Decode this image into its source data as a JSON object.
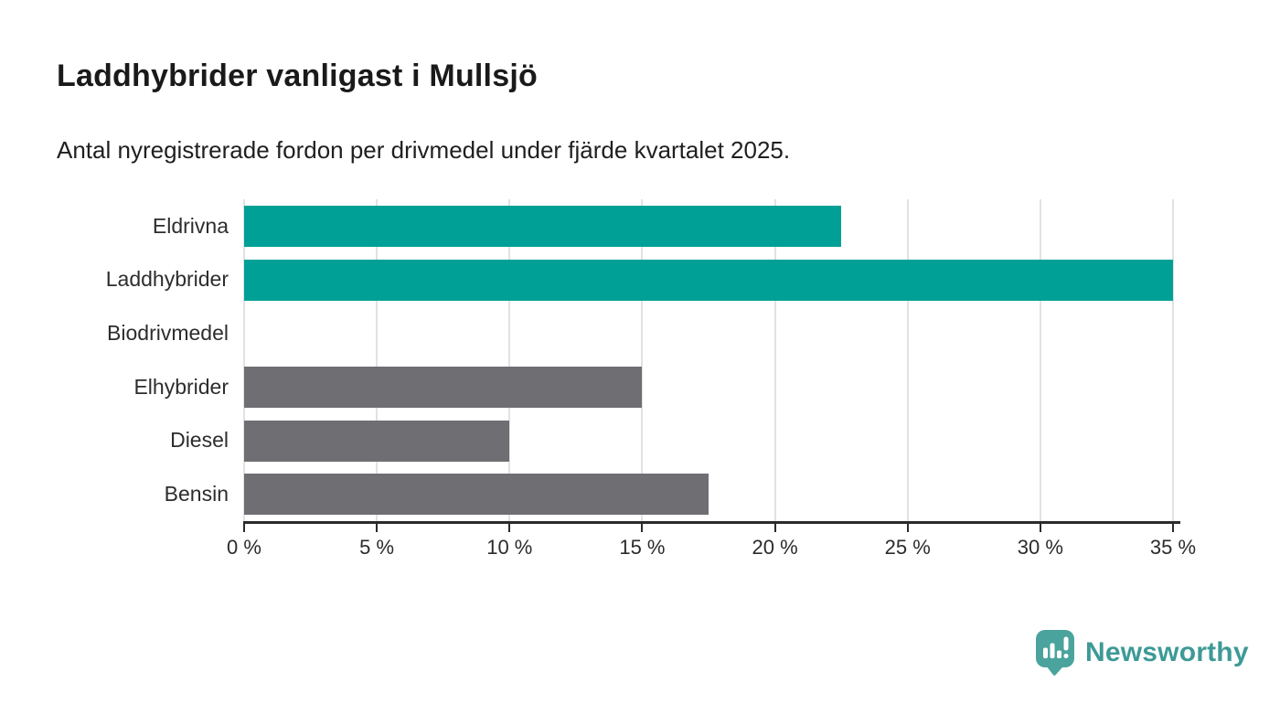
{
  "header": {
    "title": "Laddhybrider vanligast i Mullsjö",
    "subtitle": "Antal nyregistrerade fordon per drivmedel under fjärde kvartalet 2025."
  },
  "chart_data": {
    "type": "bar",
    "orientation": "horizontal",
    "title": "Laddhybrider vanligast i Mullsjö",
    "subtitle": "Antal nyregistrerade fordon per drivmedel under fjärde kvartalet 2025.",
    "categories": [
      "Eldrivna",
      "Laddhybrider",
      "Biodrivmedel",
      "Elhybrider",
      "Diesel",
      "Bensin"
    ],
    "values": [
      22.5,
      35,
      0,
      15,
      10,
      17.5
    ],
    "unit": "%",
    "xlim": [
      0,
      35
    ],
    "x_ticks": [
      0,
      5,
      10,
      15,
      20,
      25,
      30,
      35
    ],
    "x_tick_labels": [
      "0 %",
      "5 %",
      "10 %",
      "15 %",
      "20 %",
      "25 %",
      "30 %",
      "35 %"
    ],
    "grid": true,
    "legend": "none",
    "bar_colors": [
      "#00A096",
      "#00A096",
      "#6E6E73",
      "#6E6E73",
      "#6E6E73",
      "#6E6E73"
    ],
    "highlight_color": "#00A096",
    "default_color": "#6E6E73",
    "grid_color": "#e2e2e2",
    "axis_color": "#2b2b2b"
  },
  "footer": {
    "brand": "Newsworthy",
    "brand_color": "#3D9A96",
    "logo_icon_color": "#4BA39E",
    "logo_icon": "speech-bubble-bar-chart-icon"
  }
}
